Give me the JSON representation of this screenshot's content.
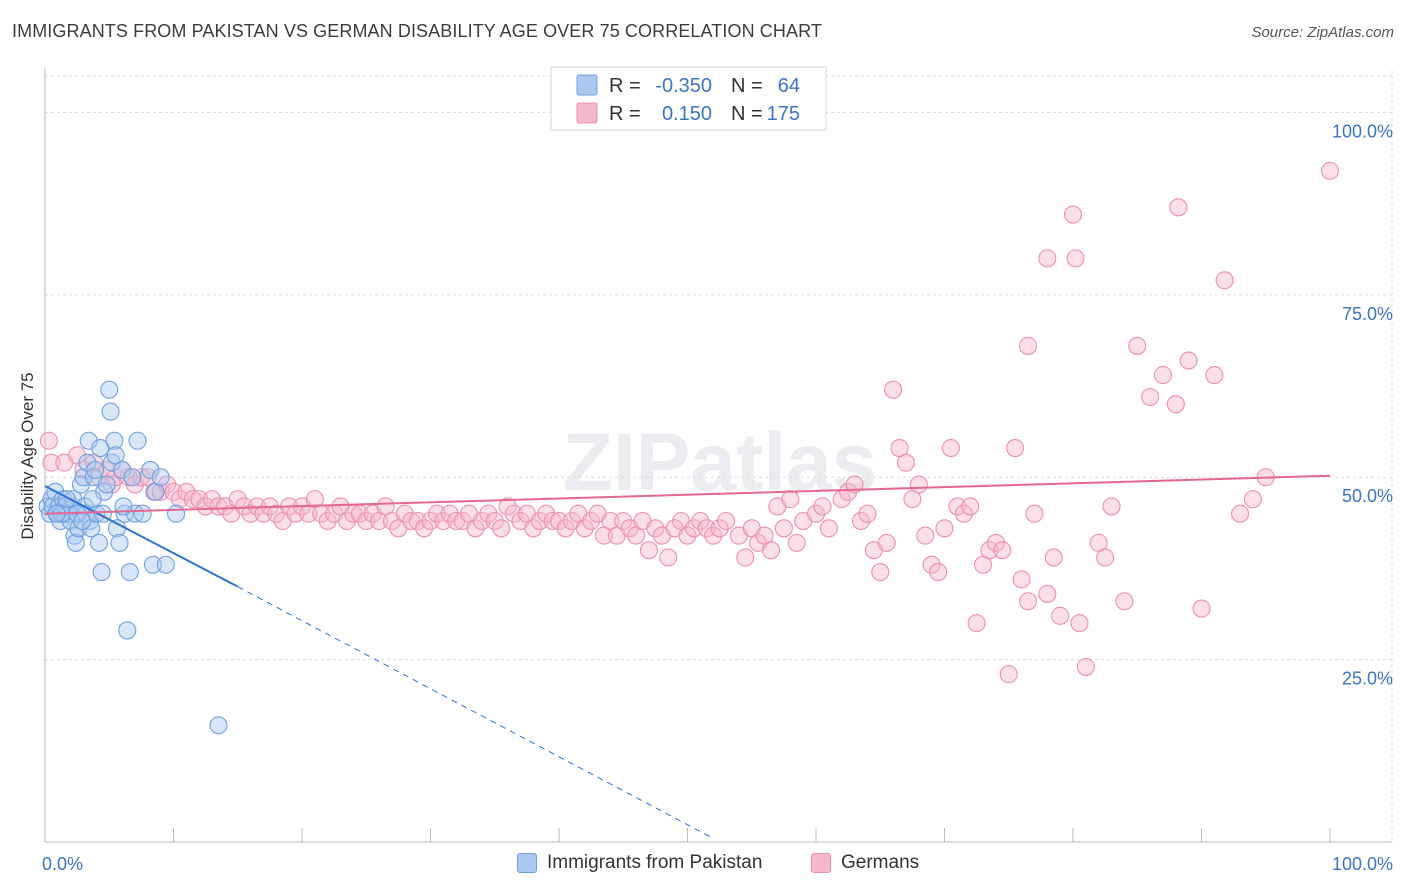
{
  "title": "IMMIGRANTS FROM PAKISTAN VS GERMAN DISABILITY AGE OVER 75 CORRELATION CHART",
  "source": "Source: ZipAtlas.com",
  "watermark": "ZIPatlas",
  "legend": {
    "r_label": "R =",
    "n_label": "N =",
    "rows": [
      {
        "r": "-0.350",
        "n": "64",
        "color": "#a8c8f0"
      },
      {
        "r": "0.150",
        "n": "175",
        "color": "#f6b8cc"
      }
    ]
  },
  "bottom_legend": [
    {
      "label": "Immigrants from Pakistan",
      "color": "#a8c8f0"
    },
    {
      "label": "Germans",
      "color": "#f6b8cc"
    }
  ],
  "chart_data": {
    "type": "scatter",
    "title": "IMMIGRANTS FROM PAKISTAN VS GERMAN DISABILITY AGE OVER 75 CORRELATION CHART",
    "xlabel": "",
    "ylabel": "Disability Age Over 75",
    "xlim": [
      0,
      100
    ],
    "ylim": [
      0,
      105
    ],
    "x_tick_labels": [
      "0.0%",
      "100.0%"
    ],
    "y_ticks": [
      25,
      50,
      75,
      100
    ],
    "y_tick_labels": [
      "25.0%",
      "50.0%",
      "75.0%",
      "100.0%"
    ],
    "series": [
      {
        "name": "Immigrants from Pakistan",
        "color": "#6ea0e0",
        "fill": "#a8c8f0",
        "line_color": "#2f73d2",
        "trend": {
          "x0": 0,
          "y0": 48.8,
          "x1": 15,
          "y1": 35.0,
          "dash_to_x": 52,
          "dash_to_y": 0.5
        },
        "points": [
          [
            0.2,
            46
          ],
          [
            0.4,
            45
          ],
          [
            0.5,
            47
          ],
          [
            0.6,
            46
          ],
          [
            0.8,
            48
          ],
          [
            1.0,
            45
          ],
          [
            1.1,
            46
          ],
          [
            1.2,
            44
          ],
          [
            1.4,
            47
          ],
          [
            1.5,
            45
          ],
          [
            1.6,
            46
          ],
          [
            1.8,
            45
          ],
          [
            2.0,
            44
          ],
          [
            2.1,
            46
          ],
          [
            2.2,
            47
          ],
          [
            2.3,
            42
          ],
          [
            2.4,
            41
          ],
          [
            2.6,
            43
          ],
          [
            2.8,
            49
          ],
          [
            3.0,
            50
          ],
          [
            3.1,
            46
          ],
          [
            3.2,
            45
          ],
          [
            3.3,
            52
          ],
          [
            3.4,
            55
          ],
          [
            3.5,
            44
          ],
          [
            3.6,
            43
          ],
          [
            3.8,
            50
          ],
          [
            3.9,
            51
          ],
          [
            4.0,
            45
          ],
          [
            4.2,
            41
          ],
          [
            4.3,
            54
          ],
          [
            4.4,
            37
          ],
          [
            4.6,
            48
          ],
          [
            4.8,
            49
          ],
          [
            5.0,
            62
          ],
          [
            5.1,
            59
          ],
          [
            5.2,
            52
          ],
          [
            5.4,
            55
          ],
          [
            5.5,
            53
          ],
          [
            5.6,
            43
          ],
          [
            5.8,
            41
          ],
          [
            6.0,
            51
          ],
          [
            6.2,
            45
          ],
          [
            6.4,
            29
          ],
          [
            6.6,
            37
          ],
          [
            6.8,
            50
          ],
          [
            7.0,
            45
          ],
          [
            7.2,
            55
          ],
          [
            7.6,
            45
          ],
          [
            8.2,
            51
          ],
          [
            8.4,
            38
          ],
          [
            8.6,
            48
          ],
          [
            9.0,
            50
          ],
          [
            9.4,
            38
          ],
          [
            10.2,
            45
          ],
          [
            13.5,
            16
          ],
          [
            1.3,
            45
          ],
          [
            1.7,
            47
          ],
          [
            2.5,
            45
          ],
          [
            2.9,
            44
          ],
          [
            3.7,
            47
          ],
          [
            4.5,
            45
          ],
          [
            0.9,
            45
          ],
          [
            6.1,
            46
          ]
        ]
      },
      {
        "name": "Germans",
        "color": "#ec8fae",
        "fill": "#f6b8cc",
        "line_color": "#e4678f",
        "trend": {
          "x0": 0,
          "y0": 45.0,
          "x1": 100,
          "y1": 50.2
        },
        "points": [
          [
            0.3,
            55
          ],
          [
            0.5,
            52
          ],
          [
            1.5,
            52
          ],
          [
            2.5,
            53
          ],
          [
            3.0,
            51
          ],
          [
            3.8,
            52
          ],
          [
            4.2,
            50
          ],
          [
            4.8,
            51
          ],
          [
            5.2,
            49
          ],
          [
            5.5,
            50
          ],
          [
            6.0,
            51
          ],
          [
            6.5,
            50
          ],
          [
            7.0,
            49
          ],
          [
            7.5,
            50
          ],
          [
            8.0,
            50
          ],
          [
            8.5,
            48
          ],
          [
            9.0,
            48
          ],
          [
            9.5,
            49
          ],
          [
            10.0,
            48
          ],
          [
            10.5,
            47
          ],
          [
            11.0,
            48
          ],
          [
            11.5,
            47
          ],
          [
            12.0,
            47
          ],
          [
            12.5,
            46
          ],
          [
            13.0,
            47
          ],
          [
            13.5,
            46
          ],
          [
            14.0,
            46
          ],
          [
            14.5,
            45
          ],
          [
            15.0,
            47
          ],
          [
            15.5,
            46
          ],
          [
            16.0,
            45
          ],
          [
            16.5,
            46
          ],
          [
            17.0,
            45
          ],
          [
            17.5,
            46
          ],
          [
            18.0,
            45
          ],
          [
            18.5,
            44
          ],
          [
            19.0,
            46
          ],
          [
            19.5,
            45
          ],
          [
            20.0,
            46
          ],
          [
            20.5,
            45
          ],
          [
            21.0,
            47
          ],
          [
            21.5,
            45
          ],
          [
            22.0,
            44
          ],
          [
            22.5,
            45
          ],
          [
            23.0,
            46
          ],
          [
            23.5,
            44
          ],
          [
            24.0,
            45
          ],
          [
            24.5,
            45
          ],
          [
            25.0,
            44
          ],
          [
            25.5,
            45
          ],
          [
            26.0,
            44
          ],
          [
            26.5,
            46
          ],
          [
            27.0,
            44
          ],
          [
            27.5,
            43
          ],
          [
            28.0,
            45
          ],
          [
            28.5,
            44
          ],
          [
            29.0,
            44
          ],
          [
            29.5,
            43
          ],
          [
            30.0,
            44
          ],
          [
            30.5,
            45
          ],
          [
            31.0,
            44
          ],
          [
            31.5,
            45
          ],
          [
            32.0,
            44
          ],
          [
            32.5,
            44
          ],
          [
            33.0,
            45
          ],
          [
            33.5,
            43
          ],
          [
            34.0,
            44
          ],
          [
            34.5,
            45
          ],
          [
            35.0,
            44
          ],
          [
            35.5,
            43
          ],
          [
            36.0,
            46
          ],
          [
            36.5,
            45
          ],
          [
            37.0,
            44
          ],
          [
            37.5,
            45
          ],
          [
            38.0,
            43
          ],
          [
            38.5,
            44
          ],
          [
            39.0,
            45
          ],
          [
            39.5,
            44
          ],
          [
            40.0,
            44
          ],
          [
            40.5,
            43
          ],
          [
            41.0,
            44
          ],
          [
            41.5,
            45
          ],
          [
            42.0,
            43
          ],
          [
            42.5,
            44
          ],
          [
            43.0,
            45
          ],
          [
            43.5,
            42
          ],
          [
            44.0,
            44
          ],
          [
            44.5,
            42
          ],
          [
            45.0,
            44
          ],
          [
            45.5,
            43
          ],
          [
            46.0,
            42
          ],
          [
            46.5,
            44
          ],
          [
            47.0,
            40
          ],
          [
            47.5,
            43
          ],
          [
            48.0,
            42
          ],
          [
            48.5,
            39
          ],
          [
            49.0,
            43
          ],
          [
            49.5,
            44
          ],
          [
            50.0,
            42
          ],
          [
            50.5,
            43
          ],
          [
            51.0,
            44
          ],
          [
            51.5,
            43
          ],
          [
            52.0,
            42
          ],
          [
            52.5,
            43
          ],
          [
            53.0,
            44
          ],
          [
            54.0,
            42
          ],
          [
            54.5,
            39
          ],
          [
            55.0,
            43
          ],
          [
            55.5,
            41
          ],
          [
            56.0,
            42
          ],
          [
            56.5,
            40
          ],
          [
            57.0,
            46
          ],
          [
            57.5,
            43
          ],
          [
            58.0,
            47
          ],
          [
            58.5,
            41
          ],
          [
            59.0,
            44
          ],
          [
            60.0,
            45
          ],
          [
            60.5,
            46
          ],
          [
            61.0,
            43
          ],
          [
            62.0,
            47
          ],
          [
            62.5,
            48
          ],
          [
            63.0,
            49
          ],
          [
            63.5,
            44
          ],
          [
            64.0,
            45
          ],
          [
            64.5,
            40
          ],
          [
            65.0,
            37
          ],
          [
            65.5,
            41
          ],
          [
            66.0,
            62
          ],
          [
            66.5,
            54
          ],
          [
            67.0,
            52
          ],
          [
            67.5,
            47
          ],
          [
            68.0,
            49
          ],
          [
            68.5,
            42
          ],
          [
            69.0,
            38
          ],
          [
            69.5,
            37
          ],
          [
            70.0,
            43
          ],
          [
            70.5,
            54
          ],
          [
            71.0,
            46
          ],
          [
            71.5,
            45
          ],
          [
            72.0,
            46
          ],
          [
            72.5,
            30
          ],
          [
            73.0,
            38
          ],
          [
            73.5,
            40
          ],
          [
            74.0,
            41
          ],
          [
            74.5,
            40
          ],
          [
            75.0,
            23
          ],
          [
            75.5,
            54
          ],
          [
            76.0,
            36
          ],
          [
            76.5,
            33
          ],
          [
            77.0,
            45
          ],
          [
            78.0,
            34
          ],
          [
            78.5,
            39
          ],
          [
            79.0,
            31
          ],
          [
            80.0,
            86
          ],
          [
            80.5,
            30
          ],
          [
            81.0,
            24
          ],
          [
            82.0,
            41
          ],
          [
            82.5,
            39
          ],
          [
            83.0,
            46
          ],
          [
            84.0,
            33
          ],
          [
            85.0,
            68
          ],
          [
            86.0,
            61
          ],
          [
            87.0,
            64
          ],
          [
            88.0,
            60
          ],
          [
            89.0,
            66
          ],
          [
            90.0,
            32
          ],
          [
            91.0,
            64
          ],
          [
            93.0,
            45
          ],
          [
            94.0,
            47
          ],
          [
            95.0,
            50
          ],
          [
            78.0,
            80
          ],
          [
            80.2,
            80
          ],
          [
            76.5,
            68
          ],
          [
            88.2,
            87
          ],
          [
            91.8,
            77
          ],
          [
            100.0,
            92
          ]
        ]
      }
    ]
  }
}
